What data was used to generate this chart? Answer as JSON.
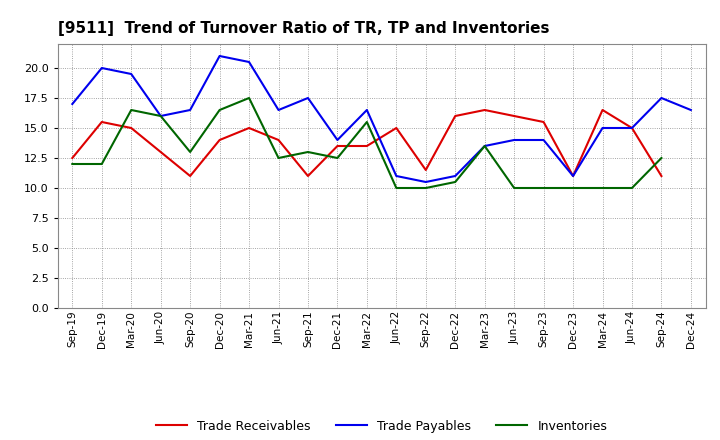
{
  "title": "[9511]  Trend of Turnover Ratio of TR, TP and Inventories",
  "x_labels": [
    "Sep-19",
    "Dec-19",
    "Mar-20",
    "Jun-20",
    "Sep-20",
    "Dec-20",
    "Mar-21",
    "Jun-21",
    "Sep-21",
    "Dec-21",
    "Mar-22",
    "Jun-22",
    "Sep-22",
    "Dec-22",
    "Mar-23",
    "Jun-23",
    "Sep-23",
    "Dec-23",
    "Mar-24",
    "Jun-24",
    "Sep-24",
    "Dec-24"
  ],
  "trade_receivables": [
    12.5,
    15.5,
    15.0,
    13.0,
    11.0,
    14.0,
    15.0,
    14.0,
    11.0,
    13.5,
    13.5,
    15.0,
    11.5,
    16.0,
    16.5,
    16.0,
    15.5,
    11.0,
    16.5,
    15.0,
    11.0,
    null
  ],
  "trade_payables": [
    17.0,
    20.0,
    19.5,
    16.0,
    16.5,
    21.0,
    20.5,
    16.5,
    17.5,
    14.0,
    16.5,
    11.0,
    10.5,
    11.0,
    13.5,
    14.0,
    14.0,
    11.0,
    15.0,
    15.0,
    17.5,
    16.5
  ],
  "inventories": [
    12.0,
    12.0,
    16.5,
    16.0,
    13.0,
    16.5,
    17.5,
    12.5,
    13.0,
    12.5,
    15.5,
    10.0,
    10.0,
    10.5,
    13.5,
    10.0,
    10.0,
    10.0,
    10.0,
    10.0,
    12.5,
    null
  ],
  "colors": {
    "trade_receivables": "#dd0000",
    "trade_payables": "#0000ee",
    "inventories": "#006600"
  },
  "ylim": [
    0.0,
    22.0
  ],
  "yticks": [
    0.0,
    2.5,
    5.0,
    7.5,
    10.0,
    12.5,
    15.0,
    17.5,
    20.0
  ],
  "background_color": "#ffffff",
  "plot_background": "#ffffff",
  "grid_color": "#888888",
  "legend_labels": [
    "Trade Receivables",
    "Trade Payables",
    "Inventories"
  ]
}
